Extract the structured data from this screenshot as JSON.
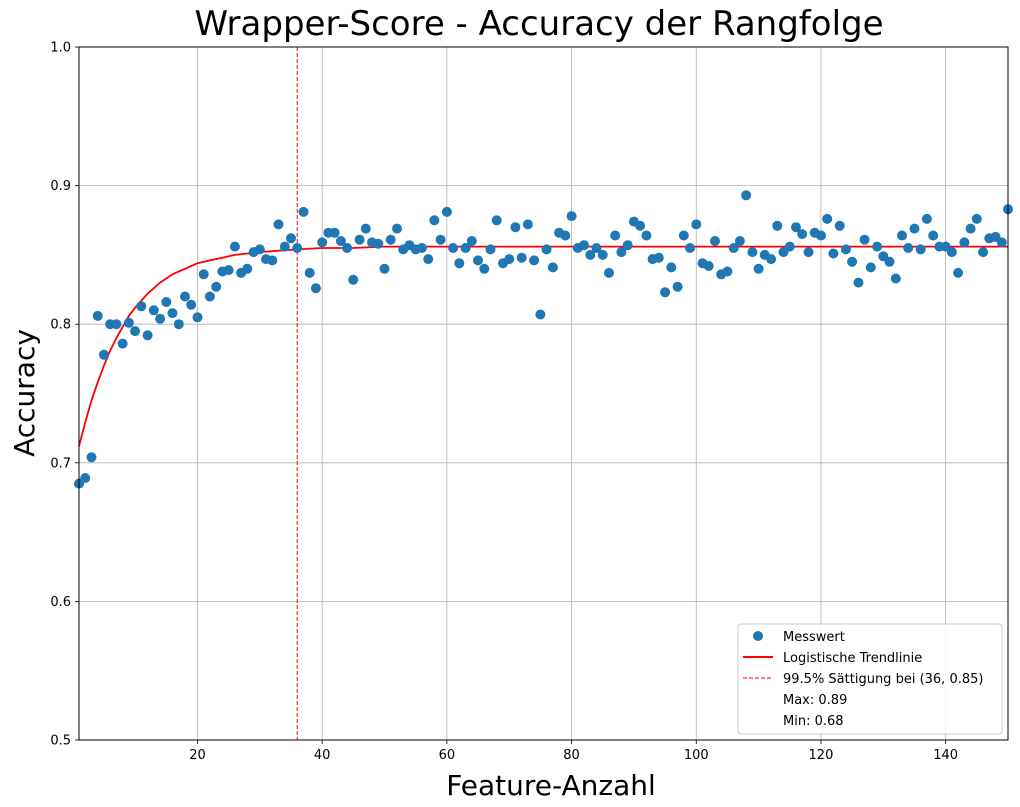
{
  "chart_data": {
    "type": "scatter",
    "title": "Wrapper-Score - Accuracy der Rangfolge",
    "xlabel": "Feature-Anzahl",
    "ylabel": "Accuracy",
    "xlim": [
      1,
      150
    ],
    "ylim": [
      0.5,
      1.0
    ],
    "xticks": [
      20,
      40,
      60,
      80,
      100,
      120,
      140
    ],
    "yticks": [
      0.5,
      0.6,
      0.7,
      0.8,
      0.9,
      1.0
    ],
    "grid": true,
    "legend_position": "bottom-right",
    "series": [
      {
        "name": "Messwert",
        "kind": "scatter",
        "color": "#1f77b4",
        "points": [
          [
            1,
            0.685
          ],
          [
            2,
            0.689
          ],
          [
            3,
            0.704
          ],
          [
            4,
            0.806
          ],
          [
            5,
            0.778
          ],
          [
            6,
            0.8
          ],
          [
            7,
            0.8
          ],
          [
            8,
            0.786
          ],
          [
            9,
            0.801
          ],
          [
            10,
            0.795
          ],
          [
            11,
            0.813
          ],
          [
            12,
            0.792
          ],
          [
            13,
            0.81
          ],
          [
            14,
            0.804
          ],
          [
            15,
            0.816
          ],
          [
            16,
            0.808
          ],
          [
            17,
            0.8
          ],
          [
            18,
            0.82
          ],
          [
            19,
            0.814
          ],
          [
            20,
            0.805
          ],
          [
            21,
            0.836
          ],
          [
            22,
            0.82
          ],
          [
            23,
            0.827
          ],
          [
            24,
            0.838
          ],
          [
            25,
            0.839
          ],
          [
            26,
            0.856
          ],
          [
            27,
            0.837
          ],
          [
            28,
            0.84
          ],
          [
            29,
            0.852
          ],
          [
            30,
            0.854
          ],
          [
            31,
            0.847
          ],
          [
            32,
            0.846
          ],
          [
            33,
            0.872
          ],
          [
            34,
            0.856
          ],
          [
            35,
            0.862
          ],
          [
            36,
            0.855
          ],
          [
            37,
            0.881
          ],
          [
            38,
            0.837
          ],
          [
            39,
            0.826
          ],
          [
            40,
            0.859
          ],
          [
            41,
            0.866
          ],
          [
            42,
            0.866
          ],
          [
            43,
            0.86
          ],
          [
            44,
            0.855
          ],
          [
            45,
            0.832
          ],
          [
            46,
            0.861
          ],
          [
            47,
            0.869
          ],
          [
            48,
            0.859
          ],
          [
            49,
            0.858
          ],
          [
            50,
            0.84
          ],
          [
            51,
            0.861
          ],
          [
            52,
            0.869
          ],
          [
            53,
            0.854
          ],
          [
            54,
            0.857
          ],
          [
            55,
            0.854
          ],
          [
            56,
            0.855
          ],
          [
            57,
            0.847
          ],
          [
            58,
            0.875
          ],
          [
            59,
            0.861
          ],
          [
            60,
            0.881
          ],
          [
            61,
            0.855
          ],
          [
            62,
            0.844
          ],
          [
            63,
            0.855
          ],
          [
            64,
            0.86
          ],
          [
            65,
            0.846
          ],
          [
            66,
            0.84
          ],
          [
            67,
            0.854
          ],
          [
            68,
            0.875
          ],
          [
            69,
            0.844
          ],
          [
            70,
            0.847
          ],
          [
            71,
            0.87
          ],
          [
            72,
            0.848
          ],
          [
            73,
            0.872
          ],
          [
            74,
            0.846
          ],
          [
            75,
            0.807
          ],
          [
            76,
            0.854
          ],
          [
            77,
            0.841
          ],
          [
            78,
            0.866
          ],
          [
            79,
            0.864
          ],
          [
            80,
            0.878
          ],
          [
            81,
            0.855
          ],
          [
            82,
            0.857
          ],
          [
            83,
            0.85
          ],
          [
            84,
            0.855
          ],
          [
            85,
            0.85
          ],
          [
            86,
            0.837
          ],
          [
            87,
            0.864
          ],
          [
            88,
            0.852
          ],
          [
            89,
            0.857
          ],
          [
            90,
            0.874
          ],
          [
            91,
            0.871
          ],
          [
            92,
            0.864
          ],
          [
            93,
            0.847
          ],
          [
            94,
            0.848
          ],
          [
            95,
            0.823
          ],
          [
            96,
            0.841
          ],
          [
            97,
            0.827
          ],
          [
            98,
            0.864
          ],
          [
            99,
            0.855
          ],
          [
            100,
            0.872
          ],
          [
            101,
            0.844
          ],
          [
            102,
            0.842
          ],
          [
            103,
            0.86
          ],
          [
            104,
            0.836
          ],
          [
            105,
            0.838
          ],
          [
            106,
            0.855
          ],
          [
            107,
            0.86
          ],
          [
            108,
            0.893
          ],
          [
            109,
            0.852
          ],
          [
            110,
            0.84
          ],
          [
            111,
            0.85
          ],
          [
            112,
            0.847
          ],
          [
            113,
            0.871
          ],
          [
            114,
            0.852
          ],
          [
            115,
            0.856
          ],
          [
            116,
            0.87
          ],
          [
            117,
            0.865
          ],
          [
            118,
            0.852
          ],
          [
            119,
            0.866
          ],
          [
            120,
            0.864
          ],
          [
            121,
            0.876
          ],
          [
            122,
            0.851
          ],
          [
            123,
            0.871
          ],
          [
            124,
            0.854
          ],
          [
            125,
            0.845
          ],
          [
            126,
            0.83
          ],
          [
            127,
            0.861
          ],
          [
            128,
            0.841
          ],
          [
            129,
            0.856
          ],
          [
            130,
            0.849
          ],
          [
            131,
            0.845
          ],
          [
            132,
            0.833
          ],
          [
            133,
            0.864
          ],
          [
            134,
            0.855
          ],
          [
            135,
            0.869
          ],
          [
            136,
            0.854
          ],
          [
            137,
            0.876
          ],
          [
            138,
            0.864
          ],
          [
            139,
            0.856
          ],
          [
            140,
            0.856
          ],
          [
            141,
            0.852
          ],
          [
            142,
            0.837
          ],
          [
            143,
            0.859
          ],
          [
            144,
            0.869
          ],
          [
            145,
            0.876
          ],
          [
            146,
            0.852
          ],
          [
            147,
            0.862
          ],
          [
            148,
            0.863
          ],
          [
            149,
            0.859
          ],
          [
            150,
            0.883
          ]
        ]
      },
      {
        "name": "Logistische Trendlinie",
        "kind": "line",
        "color": "#ff0000",
        "points": [
          [
            1,
            0.712
          ],
          [
            2,
            0.729
          ],
          [
            3,
            0.745
          ],
          [
            4,
            0.758
          ],
          [
            5,
            0.77
          ],
          [
            6,
            0.781
          ],
          [
            7,
            0.79
          ],
          [
            8,
            0.798
          ],
          [
            9,
            0.806
          ],
          [
            10,
            0.812
          ],
          [
            12,
            0.822
          ],
          [
            14,
            0.83
          ],
          [
            16,
            0.836
          ],
          [
            18,
            0.84
          ],
          [
            20,
            0.844
          ],
          [
            22,
            0.846
          ],
          [
            24,
            0.848
          ],
          [
            26,
            0.85
          ],
          [
            28,
            0.851
          ],
          [
            30,
            0.852
          ],
          [
            33,
            0.853
          ],
          [
            36,
            0.854
          ],
          [
            40,
            0.855
          ],
          [
            45,
            0.855
          ],
          [
            50,
            0.856
          ],
          [
            60,
            0.856
          ],
          [
            80,
            0.856
          ],
          [
            100,
            0.856
          ],
          [
            120,
            0.856
          ],
          [
            140,
            0.856
          ],
          [
            150,
            0.856
          ]
        ]
      },
      {
        "name": "99.5% Sättigung bei (36, 0.85)",
        "kind": "vline",
        "color": "#ff0000",
        "x": 36
      }
    ],
    "legend": {
      "messwert": "Messwert",
      "trend": "Logistische Trendlinie",
      "saettigung": "99.5% Sättigung bei (36, 0.85)",
      "max": "Max: 0.89",
      "min": "Min: 0.68"
    }
  }
}
